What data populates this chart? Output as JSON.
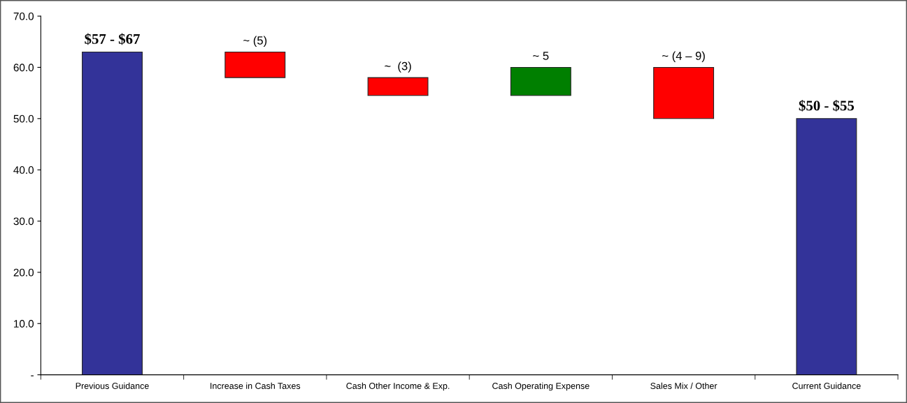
{
  "chart_data": {
    "type": "bar",
    "categories": [
      "Previous Guidance",
      "Increase in Cash Taxes",
      "Cash Other Income & Exp.",
      "Cash Operating Expense",
      "Sales Mix / Other",
      "Current Guidance"
    ],
    "values": [
      63,
      5,
      3.5,
      5.5,
      10,
      50
    ],
    "base": [
      0,
      58,
      54.5,
      54.5,
      50,
      0
    ],
    "colors": [
      "#333399",
      "#ff0000",
      "#ff0000",
      "#007f00",
      "#ff0000",
      "#333399"
    ],
    "value_labels": [
      null,
      "~ (5)",
      "~  (3)",
      "~ 5",
      "~ (4 – 9)",
      null
    ],
    "annotations": [
      {
        "text": "$57 - $67",
        "x": "Previous Guidance",
        "y": 63
      },
      {
        "text": "$50 - $55",
        "x": "Current Guidance",
        "y": 50
      }
    ],
    "ylim": [
      0,
      70
    ],
    "yticks": [
      {
        "value": 0,
        "label": "-"
      },
      {
        "value": 10,
        "label": "10.0"
      },
      {
        "value": 20,
        "label": "20.0"
      },
      {
        "value": 30,
        "label": "30.0"
      },
      {
        "value": 40,
        "label": "40.0"
      },
      {
        "value": 50,
        "label": "50.0"
      },
      {
        "value": 60,
        "label": "60.0"
      },
      {
        "value": 70,
        "label": "70.0"
      }
    ],
    "grid": false,
    "legend": false
  }
}
